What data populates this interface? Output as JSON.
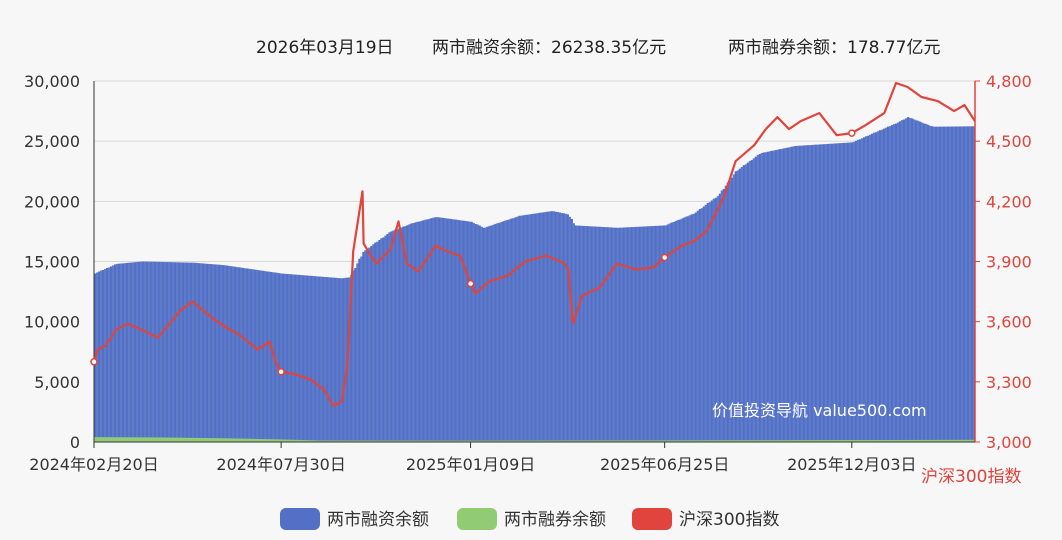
{
  "header": {
    "date": "2026年03月19日",
    "financing_text": "两市融资余额：26238.35亿元",
    "lending_text": "两市融券余额：178.77亿元"
  },
  "watermark": "价值投资导航 value500.com",
  "legend": [
    {
      "label": "两市融资余额",
      "color": "#5470c6"
    },
    {
      "label": "两市融券余额",
      "color": "#91cc75"
    },
    {
      "label": "沪深300指数",
      "color": "#e0443c"
    }
  ],
  "chart_data": {
    "type": "bar+line",
    "x": [
      "2024年02月20日",
      "2024年07月30日",
      "2025年01月09日",
      "2025年06月25日",
      "2025年12月03日",
      "2026年03月19日"
    ],
    "x_ticks": [
      "2024年02月20日",
      "2024年07月30日",
      "2025年01月09日",
      "2025年06月25日",
      "2025年12月03日"
    ],
    "y_left": {
      "ticks": [
        "0",
        "5,000",
        "10,000",
        "15,000",
        "20,000",
        "25,000",
        "30,000"
      ],
      "range": [
        0,
        30000
      ]
    },
    "y_right": {
      "ticks": [
        "3,000",
        "3,300",
        "3,600",
        "3,900",
        "4,200",
        "4,500",
        "4,800"
      ],
      "range": [
        3000,
        4800
      ],
      "label": "沪深300指数"
    },
    "series": [
      {
        "name": "两市融资余额",
        "color": "#5470c6",
        "points": [
          [
            "2024-02-20",
            14000
          ],
          [
            "2024-03-10",
            14800
          ],
          [
            "2024-04-01",
            15000
          ],
          [
            "2024-05-15",
            14900
          ],
          [
            "2024-06-10",
            14700
          ],
          [
            "2024-07-30",
            14000
          ],
          [
            "2024-09-20",
            13600
          ],
          [
            "2024-09-27",
            13700
          ],
          [
            "2024-10-08",
            15800
          ],
          [
            "2024-11-01",
            17500
          ],
          [
            "2024-11-20",
            18200
          ],
          [
            "2024-12-10",
            18700
          ],
          [
            "2025-01-09",
            18300
          ],
          [
            "2025-01-20",
            17800
          ],
          [
            "2025-02-20",
            18800
          ],
          [
            "2025-03-20",
            19200
          ],
          [
            "2025-04-03",
            18900
          ],
          [
            "2025-04-08",
            18000
          ],
          [
            "2025-05-15",
            17800
          ],
          [
            "2025-06-25",
            18000
          ],
          [
            "2025-07-20",
            19000
          ],
          [
            "2025-08-10",
            20500
          ],
          [
            "2025-08-25",
            22500
          ],
          [
            "2025-09-15",
            24000
          ],
          [
            "2025-10-15",
            24600
          ],
          [
            "2025-12-03",
            24900
          ],
          [
            "2026-01-10",
            26500
          ],
          [
            "2026-01-20",
            27000
          ],
          [
            "2026-02-10",
            26200
          ],
          [
            "2026-03-19",
            26238.35
          ]
        ]
      },
      {
        "name": "两市融券余额",
        "color": "#91cc75",
        "points": [
          [
            "2024-02-20",
            400
          ],
          [
            "2024-04-15",
            380
          ],
          [
            "2024-06-15",
            300
          ],
          [
            "2024-07-30",
            210
          ],
          [
            "2024-09-01",
            120
          ],
          [
            "2025-01-09",
            110
          ],
          [
            "2025-06-25",
            130
          ],
          [
            "2025-12-03",
            160
          ],
          [
            "2026-03-19",
            178.77
          ]
        ]
      },
      {
        "name": "沪深300指数",
        "color": "#e0443c",
        "points": [
          [
            "2024-02-20",
            3400
          ],
          [
            "2024-02-23",
            3460
          ],
          [
            "2024-03-01",
            3480
          ],
          [
            "2024-03-10",
            3560
          ],
          [
            "2024-03-20",
            3590
          ],
          [
            "2024-04-01",
            3560
          ],
          [
            "2024-04-15",
            3520
          ],
          [
            "2024-04-25",
            3590
          ],
          [
            "2024-05-05",
            3660
          ],
          [
            "2024-05-15",
            3700
          ],
          [
            "2024-05-25",
            3650
          ],
          [
            "2024-06-05",
            3600
          ],
          [
            "2024-06-25",
            3530
          ],
          [
            "2024-07-10",
            3460
          ],
          [
            "2024-07-20",
            3500
          ],
          [
            "2024-07-26",
            3390
          ],
          [
            "2024-07-30",
            3350
          ],
          [
            "2024-08-10",
            3340
          ],
          [
            "2024-08-25",
            3310
          ],
          [
            "2024-09-05",
            3260
          ],
          [
            "2024-09-13",
            3180
          ],
          [
            "2024-09-20",
            3200
          ],
          [
            "2024-09-25",
            3380
          ],
          [
            "2024-09-30",
            3950
          ],
          [
            "2024-10-08",
            4250
          ],
          [
            "2024-10-09",
            3990
          ],
          [
            "2024-10-14",
            3940
          ],
          [
            "2024-10-20",
            3890
          ],
          [
            "2024-11-01",
            3960
          ],
          [
            "2024-11-08",
            4100
          ],
          [
            "2024-11-15",
            3890
          ],
          [
            "2024-11-25",
            3850
          ],
          [
            "2024-12-10",
            3980
          ],
          [
            "2024-12-20",
            3950
          ],
          [
            "2024-12-31",
            3930
          ],
          [
            "2025-01-09",
            3790
          ],
          [
            "2025-01-13",
            3740
          ],
          [
            "2025-01-25",
            3800
          ],
          [
            "2025-02-10",
            3830
          ],
          [
            "2025-02-25",
            3900
          ],
          [
            "2025-03-15",
            3930
          ],
          [
            "2025-03-31",
            3890
          ],
          [
            "2025-04-03",
            3860
          ],
          [
            "2025-04-07",
            3590
          ],
          [
            "2025-04-15",
            3730
          ],
          [
            "2025-04-30",
            3770
          ],
          [
            "2025-05-15",
            3890
          ],
          [
            "2025-05-31",
            3860
          ],
          [
            "2025-06-15",
            3870
          ],
          [
            "2025-06-25",
            3920
          ],
          [
            "2025-07-10",
            3980
          ],
          [
            "2025-07-20",
            4000
          ],
          [
            "2025-07-31",
            4050
          ],
          [
            "2025-08-15",
            4220
          ],
          [
            "2025-08-25",
            4400
          ],
          [
            "2025-09-10",
            4480
          ],
          [
            "2025-09-20",
            4560
          ],
          [
            "2025-09-30",
            4620
          ],
          [
            "2025-10-10",
            4560
          ],
          [
            "2025-10-20",
            4600
          ],
          [
            "2025-11-05",
            4640
          ],
          [
            "2025-11-20",
            4530
          ],
          [
            "2025-12-03",
            4540
          ],
          [
            "2025-12-15",
            4580
          ],
          [
            "2025-12-31",
            4640
          ],
          [
            "2026-01-10",
            4790
          ],
          [
            "2026-01-20",
            4770
          ],
          [
            "2026-02-01",
            4720
          ],
          [
            "2026-02-15",
            4700
          ],
          [
            "2026-03-01",
            4650
          ],
          [
            "2026-03-10",
            4680
          ],
          [
            "2026-03-19",
            4600
          ]
        ]
      }
    ],
    "grid": true,
    "legend_position": "bottom"
  }
}
